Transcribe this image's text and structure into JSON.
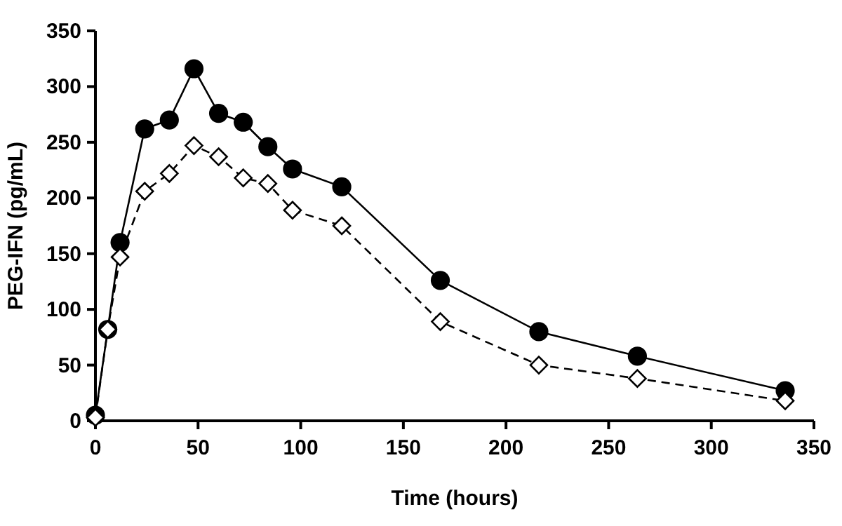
{
  "chart_data": {
    "type": "line",
    "xlabel": "Time (hours)",
    "ylabel": "PEG-IFN (pg/mL)",
    "x": [
      0,
      6,
      12,
      24,
      36,
      48,
      60,
      72,
      84,
      96,
      120,
      168,
      216,
      264,
      336
    ],
    "series": [
      {
        "color": "#000000",
        "marker": "circle",
        "line_style": "solid",
        "values": [
          5,
          82,
          160,
          262,
          270,
          316,
          276,
          268,
          246,
          226,
          210,
          126,
          80,
          58,
          27
        ]
      },
      {
        "color": "#000000",
        "marker": "diamond",
        "line_style": "dashed",
        "values": [
          3,
          82,
          147,
          206,
          222,
          247,
          237,
          218,
          213,
          189,
          175,
          89,
          50,
          38,
          18
        ]
      }
    ],
    "xlim": [
      0,
      350
    ],
    "xticks": [
      0,
      50,
      100,
      150,
      200,
      250,
      300,
      350
    ],
    "ylim": [
      0,
      350
    ],
    "yticks": [
      0,
      50,
      100,
      150,
      200,
      250,
      300,
      350
    ]
  }
}
